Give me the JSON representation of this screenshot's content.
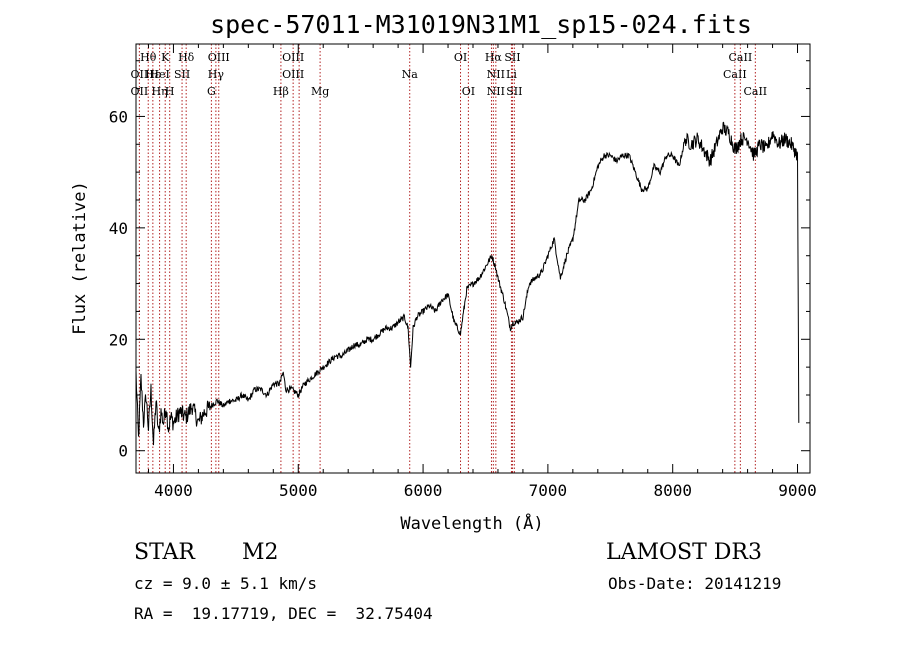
{
  "chart_data": {
    "type": "line",
    "title": "spec-57011-M31019N31M1_sp15-024.fits",
    "xlabel": "Wavelength (Å)",
    "ylabel": "Flux (relative)",
    "xlim": [
      3700,
      9100
    ],
    "ylim": [
      -4,
      73
    ],
    "xticks": [
      4000,
      5000,
      6000,
      7000,
      8000,
      9000
    ],
    "yticks": [
      0,
      20,
      40,
      60
    ],
    "grid": false,
    "line_color": "#000000",
    "marker_color": "#b22222",
    "series": [
      {
        "name": "flux",
        "x": [
          3700,
          3720,
          3740,
          3760,
          3780,
          3800,
          3820,
          3840,
          3860,
          3880,
          3900,
          3920,
          3940,
          3960,
          3980,
          4000,
          4050,
          4100,
          4150,
          4200,
          4250,
          4300,
          4350,
          4400,
          4450,
          4500,
          4550,
          4600,
          4650,
          4700,
          4750,
          4800,
          4850,
          4880,
          4900,
          4950,
          5000,
          5050,
          5100,
          5150,
          5200,
          5250,
          5300,
          5350,
          5400,
          5450,
          5500,
          5550,
          5600,
          5650,
          5700,
          5750,
          5800,
          5850,
          5880,
          5900,
          5920,
          5950,
          6000,
          6050,
          6100,
          6150,
          6200,
          6250,
          6300,
          6350,
          6400,
          6450,
          6500,
          6550,
          6580,
          6600,
          6650,
          6700,
          6720,
          6750,
          6800,
          6850,
          6900,
          6950,
          7000,
          7050,
          7100,
          7150,
          7200,
          7250,
          7300,
          7350,
          7400,
          7450,
          7500,
          7550,
          7600,
          7650,
          7700,
          7750,
          7800,
          7850,
          7900,
          7950,
          8000,
          8050,
          8100,
          8150,
          8200,
          8250,
          8300,
          8350,
          8400,
          8450,
          8500,
          8550,
          8600,
          8650,
          8700,
          8750,
          8800,
          8850,
          8900,
          8950,
          9000,
          9010
        ],
        "y": [
          14,
          2,
          13,
          5,
          10,
          4,
          11,
          1,
          9,
          3,
          7,
          5,
          8,
          4,
          6,
          5,
          7,
          6,
          8,
          5,
          7,
          8,
          9,
          8,
          9,
          9,
          10,
          9,
          11,
          11,
          10,
          12,
          12,
          14,
          11,
          11,
          10,
          12,
          13,
          14,
          15,
          16,
          17,
          17,
          18,
          19,
          19,
          20,
          20,
          21,
          22,
          22,
          23,
          24,
          22,
          15,
          22,
          24,
          25,
          26,
          25,
          27,
          28,
          23,
          21,
          29,
          30,
          31,
          33,
          35,
          33,
          31,
          27,
          22,
          23,
          23,
          24,
          30,
          31,
          32,
          35,
          38,
          31,
          35,
          38,
          45,
          45,
          47,
          51,
          53,
          53,
          52,
          53,
          53,
          50,
          47,
          47,
          51,
          50,
          53,
          53,
          51,
          56,
          55,
          56,
          54,
          52,
          55,
          58,
          57,
          54,
          56,
          56,
          53,
          55,
          54,
          57,
          55,
          56,
          55,
          53,
          5
        ]
      }
    ],
    "annotations": [
      {
        "label": "Hθ",
        "wavelength": 3798,
        "row": 1
      },
      {
        "label": "OII",
        "wavelength": 3727,
        "row": 2
      },
      {
        "label": "OII",
        "wavelength": 3727,
        "row": 3
      },
      {
        "label": "Hε",
        "wavelength": 3835,
        "row": 2
      },
      {
        "label": "Hη",
        "wavelength": 3889,
        "row": 3
      },
      {
        "label": "K",
        "wavelength": 3934,
        "row": 1
      },
      {
        "label": "HeI",
        "wavelength": 3889,
        "row": 2
      },
      {
        "label": "H",
        "wavelength": 3970,
        "row": 3
      },
      {
        "label": "SII",
        "wavelength": 4069,
        "row": 2
      },
      {
        "label": "Hδ",
        "wavelength": 4102,
        "row": 1
      },
      {
        "label": "OIII",
        "wavelength": 4363,
        "row": 1
      },
      {
        "label": "Hγ",
        "wavelength": 4340,
        "row": 2
      },
      {
        "label": "G",
        "wavelength": 4304,
        "row": 3
      },
      {
        "label": "OIII",
        "wavelength": 4959,
        "row": 1
      },
      {
        "label": "OIII",
        "wavelength": 4959,
        "row": 2
      },
      {
        "label": "Hβ",
        "wavelength": 4861,
        "row": 3
      },
      {
        "label": "Mg",
        "wavelength": 5175,
        "row": 3
      },
      {
        "label": "Na",
        "wavelength": 5893,
        "row": 2
      },
      {
        "label": "OI",
        "wavelength": 6300,
        "row": 1
      },
      {
        "label": "OI",
        "wavelength": 6363,
        "row": 3
      },
      {
        "label": "Hα",
        "wavelength": 6563,
        "row": 1
      },
      {
        "label": "SII",
        "wavelength": 6716,
        "row": 1
      },
      {
        "label": "NII",
        "wavelength": 6583,
        "row": 2
      },
      {
        "label": "Li",
        "wavelength": 6708,
        "row": 2
      },
      {
        "label": "NII",
        "wavelength": 6583,
        "row": 3
      },
      {
        "label": "SII",
        "wavelength": 6731,
        "row": 3
      },
      {
        "label": "CaII",
        "wavelength": 8542,
        "row": 1
      },
      {
        "label": "CaII",
        "wavelength": 8498,
        "row": 2
      },
      {
        "label": "CaII",
        "wavelength": 8662,
        "row": 3
      }
    ],
    "line_markers": [
      3727,
      3798,
      3835,
      3889,
      3934,
      3970,
      4069,
      4102,
      4304,
      4340,
      4363,
      4861,
      4959,
      5007,
      5175,
      5893,
      6300,
      6363,
      6548,
      6563,
      6583,
      6708,
      6716,
      6731,
      8498,
      8542,
      8662
    ]
  },
  "info": {
    "class": "STAR",
    "subclass": "M2",
    "survey": "LAMOST DR3",
    "cz": "cz = 9.0 ± 5.1 km/s",
    "obs_date": "Obs-Date: 20141219",
    "coords": "RA =  19.17719, DEC =  32.75404"
  }
}
